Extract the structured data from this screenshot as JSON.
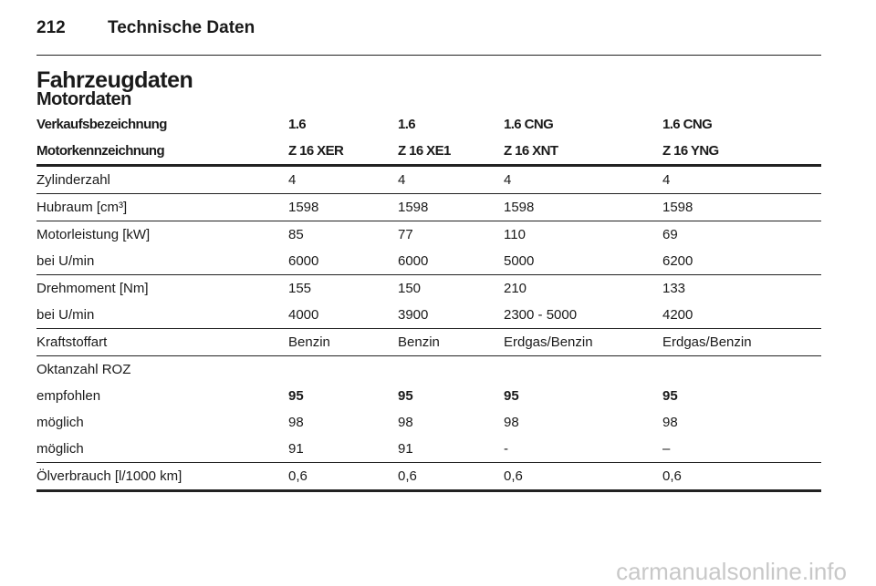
{
  "header": {
    "page_number": "212",
    "title": "Technische Daten"
  },
  "section_title": "Fahrzeugdaten",
  "subtitle": "Motordaten",
  "table": {
    "header_rows": [
      [
        "Verkaufsbezeichnung",
        "1.6",
        "1.6",
        "1.6 CNG",
        "1.6 CNG"
      ],
      [
        "Motorkennzeichnung",
        "Z 16 XER",
        "Z 16 XE1",
        "Z 16 XNT",
        "Z 16 YNG"
      ]
    ],
    "groups": [
      {
        "rows": [
          {
            "cells": [
              "Zylinderzahl",
              "4",
              "4",
              "4",
              "4"
            ]
          }
        ]
      },
      {
        "rows": [
          {
            "cells": [
              "Hubraum [cm³]",
              "1598",
              "1598",
              "1598",
              "1598"
            ]
          }
        ]
      },
      {
        "rows": [
          {
            "cells": [
              "Motorleistung [kW]",
              "85",
              "77",
              "110",
              "69"
            ]
          },
          {
            "cells": [
              "bei U/min",
              "6000",
              "6000",
              "5000",
              "6200"
            ]
          }
        ]
      },
      {
        "rows": [
          {
            "cells": [
              "Drehmoment [Nm]",
              "155",
              "150",
              "210",
              "133"
            ]
          },
          {
            "cells": [
              "bei U/min",
              "4000",
              "3900",
              "2300 - 5000",
              "4200"
            ]
          }
        ]
      },
      {
        "rows": [
          {
            "cells": [
              "Kraftstoffart",
              "Benzin",
              "Benzin",
              "Erdgas/Benzin",
              "Erdgas/Benzin"
            ]
          }
        ]
      },
      {
        "rows": [
          {
            "cells": [
              "Oktanzahl ROZ"
            ]
          },
          {
            "cells": [
              "empfohlen",
              "95",
              "95",
              "95",
              "95"
            ],
            "bold": true
          },
          {
            "cells": [
              "möglich",
              "98",
              "98",
              "98",
              "98"
            ]
          },
          {
            "cells": [
              "möglich",
              "91",
              "91",
              "-",
              "–"
            ]
          }
        ]
      },
      {
        "rows": [
          {
            "cells": [
              "Ölverbrauch [l/1000 km]",
              "0,6",
              "0,6",
              "0,6",
              "0,6"
            ]
          }
        ]
      }
    ]
  },
  "watermark": "carmanualsonline.info"
}
